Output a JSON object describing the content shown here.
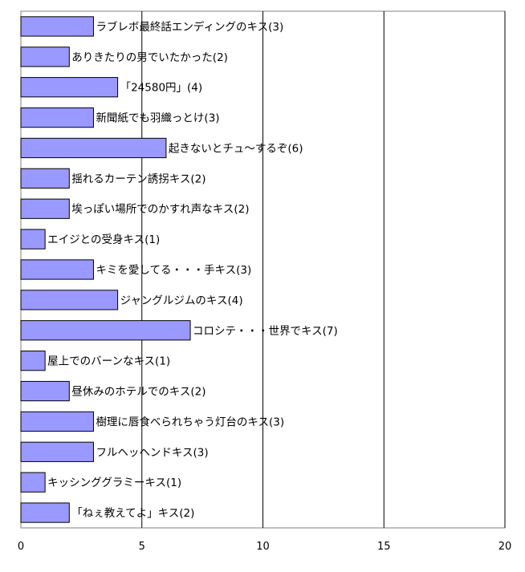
{
  "chart_data": {
    "type": "bar",
    "orientation": "horizontal",
    "categories": [
      "ラブレボ最終話エンディングのキス",
      "ありきたりの男でいたかった",
      "「24580円」",
      "新聞紙でも羽織っとけ",
      "起きないとチュ～するぞ",
      "揺れるカーテン誘拐キス",
      "埃っぽい場所でのかすれ声なキス",
      "エイジとの受身キス",
      "キミを愛してる・・・手キス",
      "ジャングルジムのキス",
      "コロシテ・・・世界でキス",
      "屋上でのバーンなキス",
      "昼休みのホテルでのキス",
      "樹理に唇食べられちゃう灯台のキス",
      "フルヘッヘンドキス",
      "キッシンググラミーキス",
      "「ねぇ教えてよ」キス"
    ],
    "values": [
      3,
      2,
      4,
      3,
      6,
      2,
      2,
      1,
      3,
      4,
      7,
      1,
      2,
      3,
      3,
      1,
      2
    ],
    "data_labels": [
      "ラブレボ最終話エンディングのキス(3)",
      "ありきたりの男でいたかった(2)",
      "「24580円」(4)",
      "新聞紙でも羽織っとけ(3)",
      "起きないとチュ～するぞ(6)",
      "揺れるカーテン誘拐キス(2)",
      "埃っぽい場所でのかすれ声なキス(2)",
      "エイジとの受身キス(1)",
      "キミを愛してる・・・手キス(3)",
      "ジャングルジムのキス(4)",
      "コロシテ・・・世界でキス(7)",
      "屋上でのバーンなキス(1)",
      "昼休みのホテルでのキス(2)",
      "樹理に唇食べられちゃう灯台のキス(3)",
      "フルヘッヘンドキス(3)",
      "キッシンググラミーキス(1)",
      "「ねぇ教えてよ」キス(2)"
    ],
    "x_ticks": [
      "0",
      "5",
      "10",
      "15",
      "20"
    ],
    "xlim": [
      0,
      20
    ],
    "title": "",
    "xlabel": "",
    "ylabel": "",
    "grid": "vertical major gridlines",
    "legend": "none",
    "colors": {
      "bar_fill": "#9999ff",
      "bar_stroke": "#000000",
      "grid": "#000000",
      "frame": "#808080"
    }
  }
}
